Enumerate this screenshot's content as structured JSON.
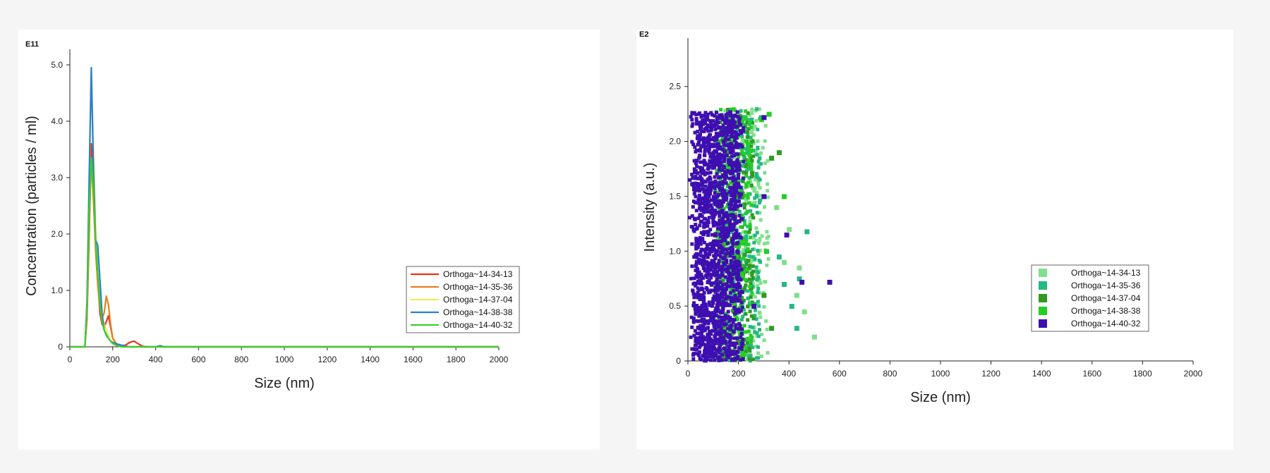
{
  "chart_data": [
    {
      "type": "line",
      "multiplier_label": "E11",
      "xlabel": "Size (nm)",
      "ylabel": "Concentration (particles / ml)",
      "xlim": [
        0,
        2000
      ],
      "ylim": [
        0,
        5.0
      ],
      "xticks": [
        "0",
        "200",
        "400",
        "600",
        "800",
        "1000",
        "1200",
        "1400",
        "1600",
        "1800",
        "2000"
      ],
      "yticks": [
        "0",
        "1.0",
        "2.0",
        "3.0",
        "4.0",
        "5.0"
      ],
      "grid": false,
      "legend_position": "bottom-right",
      "series": [
        {
          "name": "Orthoga~14-34-13",
          "color": "#e8321e",
          "x": [
            0,
            70,
            80,
            90,
            100,
            110,
            120,
            130,
            140,
            150,
            160,
            170,
            180,
            190,
            200,
            220,
            240,
            260,
            280,
            300,
            320,
            340,
            360,
            400,
            500,
            2000
          ],
          "y": [
            0,
            0,
            0.5,
            2.0,
            3.6,
            2.9,
            1.9,
            1.2,
            0.6,
            0.4,
            0.35,
            0.45,
            0.55,
            0.35,
            0.15,
            0.04,
            0.02,
            0.03,
            0.08,
            0.1,
            0.05,
            0.01,
            0.0,
            0,
            0,
            0
          ]
        },
        {
          "name": "Orthoga~14-35-36",
          "color": "#e8801e",
          "x": [
            0,
            70,
            80,
            90,
            100,
            110,
            120,
            130,
            140,
            150,
            160,
            170,
            180,
            190,
            200,
            220,
            240,
            260,
            280,
            300,
            2000
          ],
          "y": [
            0,
            0,
            0.6,
            2.2,
            3.3,
            2.6,
            1.7,
            1.1,
            0.7,
            0.5,
            0.6,
            0.9,
            0.75,
            0.4,
            0.15,
            0.04,
            0.02,
            0.01,
            0,
            0,
            0
          ]
        },
        {
          "name": "Orthoga~14-37-04",
          "color": "#f2ea62",
          "x": [
            0,
            70,
            80,
            90,
            100,
            110,
            120,
            130,
            140,
            150,
            160,
            170,
            180,
            190,
            200,
            220,
            240,
            2000
          ],
          "y": [
            0,
            0,
            0.7,
            2.8,
            4.95,
            3.6,
            2.1,
            1.3,
            0.8,
            0.55,
            0.4,
            0.3,
            0.2,
            0.1,
            0.05,
            0.02,
            0,
            0
          ]
        },
        {
          "name": "Orthoga~14-38-38",
          "color": "#2a7fd0",
          "x": [
            0,
            70,
            80,
            90,
            100,
            110,
            120,
            130,
            140,
            150,
            160,
            170,
            180,
            190,
            200,
            220,
            240,
            260,
            280,
            300,
            400,
            420,
            440,
            2000
          ],
          "y": [
            0,
            0,
            0.8,
            3.0,
            4.95,
            3.2,
            1.9,
            1.8,
            1.2,
            0.6,
            0.3,
            0.2,
            0.15,
            0.1,
            0.08,
            0.05,
            0.03,
            0.01,
            0,
            0,
            0,
            0.02,
            0,
            0
          ]
        },
        {
          "name": "Orthoga~14-40-32",
          "color": "#3fcd2a",
          "x": [
            0,
            70,
            80,
            90,
            100,
            110,
            120,
            130,
            140,
            150,
            160,
            170,
            180,
            190,
            200,
            220,
            240,
            2000
          ],
          "y": [
            0,
            0,
            0.7,
            2.4,
            3.35,
            2.8,
            1.9,
            1.3,
            0.75,
            0.45,
            0.3,
            0.22,
            0.15,
            0.1,
            0.06,
            0.02,
            0,
            0
          ]
        }
      ]
    },
    {
      "type": "scatter",
      "multiplier_label": "E2",
      "xlabel": "Size (nm)",
      "ylabel": "Intensity (a.u.)",
      "xlim": [
        0,
        2000
      ],
      "ylim": [
        0,
        2.8
      ],
      "xticks": [
        "0",
        "200",
        "400",
        "600",
        "800",
        "1000",
        "1200",
        "1400",
        "1600",
        "1800",
        "2000"
      ],
      "yticks": [
        "0",
        "0.5",
        "1.0",
        "1.5",
        "2.0",
        "2.5"
      ],
      "grid": false,
      "legend_position": "bottom-right",
      "series": [
        {
          "name": "Orthoga~14-34-13",
          "color": "#7fe08a",
          "x_center": 230,
          "x_spread": 90,
          "outliers": [
            [
              440,
              0.85
            ],
            [
              500,
              0.22
            ],
            [
              430,
              0.6
            ],
            [
              380,
              0.9
            ],
            [
              460,
              0.45
            ],
            [
              350,
              1.4
            ],
            [
              400,
              1.2
            ]
          ]
        },
        {
          "name": "Orthoga~14-35-36",
          "color": "#24b883",
          "x_center": 210,
          "x_spread": 80,
          "outliers": [
            [
              470,
              1.18
            ],
            [
              430,
              0.3
            ],
            [
              410,
              0.5
            ],
            [
              360,
              0.95
            ],
            [
              380,
              0.7
            ],
            [
              440,
              0.75
            ]
          ]
        },
        {
          "name": "Orthoga~14-37-04",
          "color": "#2e9a23",
          "x_center": 190,
          "x_spread": 70,
          "outliers": [
            [
              360,
              1.9
            ],
            [
              330,
              1.85
            ],
            [
              300,
              0.6
            ],
            [
              330,
              0.3
            ]
          ]
        },
        {
          "name": "Orthoga~14-38-38",
          "color": "#22cf25",
          "x_center": 180,
          "x_spread": 75,
          "outliers": [
            [
              320,
              2.25
            ],
            [
              290,
              2.2
            ],
            [
              380,
              1.5
            ],
            [
              310,
              1.0
            ]
          ]
        },
        {
          "name": "Orthoga~14-40-32",
          "color": "#3e0fb0",
          "x_center": 120,
          "x_spread": 60,
          "outliers": [
            [
              560,
              0.72
            ],
            [
              450,
              0.72
            ],
            [
              390,
              1.15
            ],
            [
              300,
              2.22
            ],
            [
              260,
              0.5
            ],
            [
              300,
              1.5
            ]
          ]
        }
      ]
    }
  ]
}
